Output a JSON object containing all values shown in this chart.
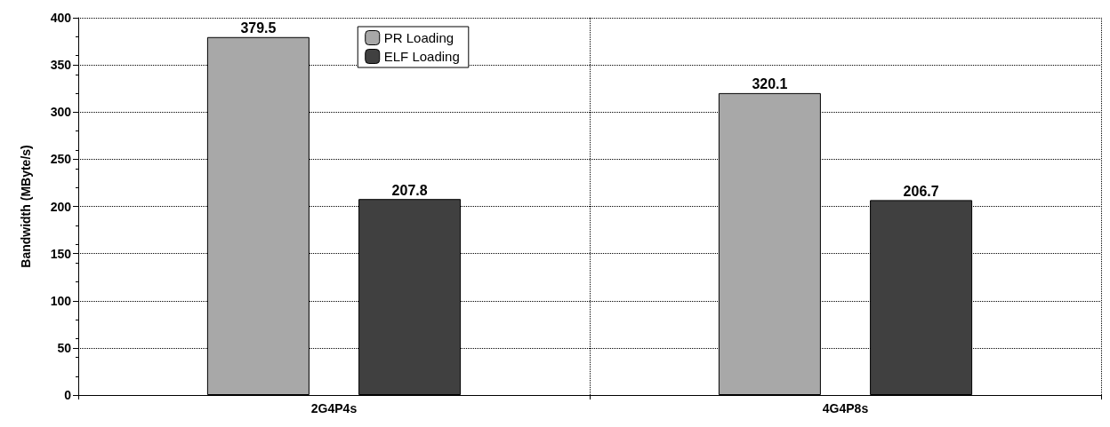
{
  "chart_data": {
    "type": "bar",
    "ylabel": "Bandwidth (MByte/s)",
    "categories": [
      "2G4P4s",
      "4G4P8s"
    ],
    "series": [
      {
        "name": "PR Loading",
        "color": "#a8a8a8",
        "values": [
          379.5,
          320.1
        ]
      },
      {
        "name": "ELF Loading",
        "color": "#404040",
        "values": [
          207.8,
          206.7
        ]
      }
    ],
    "ylim": [
      0,
      400
    ],
    "yticks": [
      0,
      50,
      100,
      150,
      200,
      250,
      300,
      350,
      400
    ],
    "grid": true,
    "legend": "top",
    "data_labels": true
  }
}
